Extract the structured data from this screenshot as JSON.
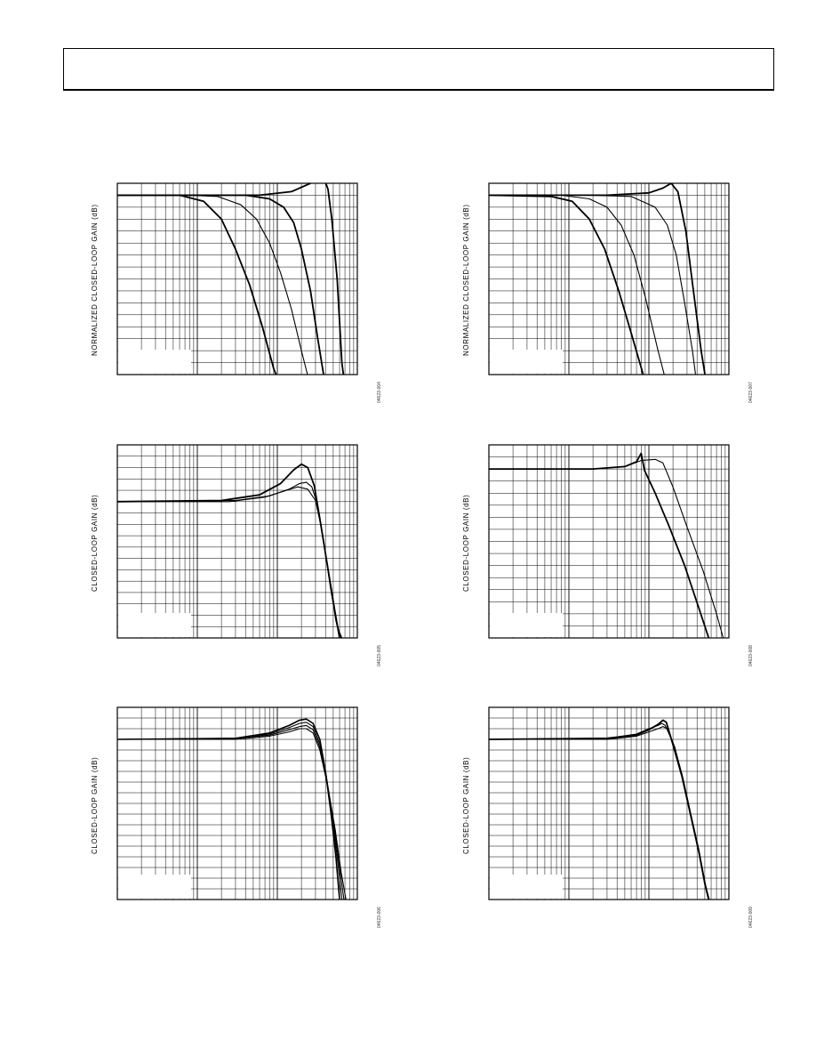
{
  "page": {
    "header": {
      "text": ""
    }
  },
  "chart_data": [
    {
      "id": "p1",
      "type": "line",
      "x_scale": "log",
      "grid": true,
      "title": "",
      "xlabel": "",
      "ylabel": "NORMALIZED CLOSED-LOOP GAIN (dB)",
      "figure_id": "04623-004",
      "ylim": [
        -15,
        1
      ],
      "xlim": [
        1,
        1000
      ],
      "yticks": 16,
      "series": [
        {
          "values": [
            [
              1,
              0
            ],
            [
              20,
              0
            ],
            [
              60,
              0
            ],
            [
              150,
              0.3
            ],
            [
              260,
              1.0
            ],
            [
              330,
              1.6
            ],
            [
              380,
              1.5
            ],
            [
              430,
              0.5
            ],
            [
              480,
              -2
            ],
            [
              560,
              -7
            ],
            [
              640,
              -14
            ],
            [
              700,
              -16
            ]
          ],
          "width": 1.8
        },
        {
          "values": [
            [
              1,
              0
            ],
            [
              15,
              0
            ],
            [
              40,
              0
            ],
            [
              80,
              -0.3
            ],
            [
              120,
              -1
            ],
            [
              160,
              -2.3
            ],
            [
              200,
              -4.5
            ],
            [
              260,
              -8
            ],
            [
              320,
              -12
            ],
            [
              400,
              -16
            ]
          ],
          "width": 1.8
        },
        {
          "values": [
            [
              1,
              0
            ],
            [
              8,
              0
            ],
            [
              18,
              -0.1
            ],
            [
              35,
              -0.8
            ],
            [
              55,
              -2
            ],
            [
              80,
              -4
            ],
            [
              110,
              -6.5
            ],
            [
              150,
              -9.5
            ],
            [
              200,
              -13
            ],
            [
              260,
              -16
            ]
          ],
          "width": 1.1
        },
        {
          "values": [
            [
              1,
              0
            ],
            [
              6,
              0
            ],
            [
              12,
              -0.5
            ],
            [
              20,
              -2
            ],
            [
              30,
              -4.5
            ],
            [
              45,
              -7.5
            ],
            [
              65,
              -11
            ],
            [
              90,
              -14.5
            ],
            [
              110,
              -16
            ]
          ],
          "width": 1.8
        }
      ]
    },
    {
      "id": "p2",
      "type": "line",
      "x_scale": "log",
      "grid": true,
      "title": "",
      "xlabel": "",
      "ylabel": "NORMALIZED CLOSED-LOOP GAIN (dB)",
      "figure_id": "04623-007",
      "ylim": [
        -15,
        1
      ],
      "xlim": [
        1,
        1000
      ],
      "yticks": 16,
      "series": [
        {
          "values": [
            [
              1,
              0
            ],
            [
              30,
              0
            ],
            [
              100,
              0.2
            ],
            [
              150,
              0.6
            ],
            [
              190,
              1.0
            ],
            [
              230,
              0.3
            ],
            [
              290,
              -3
            ],
            [
              360,
              -8
            ],
            [
              450,
              -13
            ],
            [
              530,
              -16
            ]
          ],
          "width": 1.8
        },
        {
          "values": [
            [
              1,
              0
            ],
            [
              20,
              0
            ],
            [
              60,
              -0.1
            ],
            [
              120,
              -1
            ],
            [
              170,
              -2.5
            ],
            [
              220,
              -5
            ],
            [
              280,
              -9
            ],
            [
              350,
              -13
            ],
            [
              400,
              -16
            ]
          ],
          "width": 1.1
        },
        {
          "values": [
            [
              1,
              0
            ],
            [
              8,
              0
            ],
            [
              18,
              -0.3
            ],
            [
              30,
              -1
            ],
            [
              45,
              -2.5
            ],
            [
              65,
              -5
            ],
            [
              90,
              -8.5
            ],
            [
              130,
              -13
            ],
            [
              170,
              -16
            ]
          ],
          "width": 1.1
        },
        {
          "values": [
            [
              1,
              0
            ],
            [
              6,
              -0.1
            ],
            [
              11,
              -0.5
            ],
            [
              18,
              -2
            ],
            [
              28,
              -4.5
            ],
            [
              42,
              -8
            ],
            [
              60,
              -11.5
            ],
            [
              85,
              -15
            ],
            [
              100,
              -16
            ]
          ],
          "width": 1.8
        }
      ]
    },
    {
      "id": "p3",
      "type": "line",
      "x_scale": "log",
      "grid": true,
      "title": "",
      "xlabel": "",
      "ylabel": "CLOSED-LOOP GAIN (dB)",
      "figure_id": "04623-005",
      "ylim": [
        -12,
        5
      ],
      "xlim": [
        1,
        1000
      ],
      "yticks": 17,
      "series": [
        {
          "values": [
            [
              1,
              0
            ],
            [
              20,
              0.1
            ],
            [
              60,
              0.6
            ],
            [
              110,
              1.6
            ],
            [
              160,
              2.8
            ],
            [
              200,
              3.3
            ],
            [
              240,
              3.0
            ],
            [
              290,
              1.4
            ],
            [
              340,
              -1.5
            ],
            [
              420,
              -5.5
            ],
            [
              520,
              -9.5
            ],
            [
              600,
              -12
            ]
          ],
          "width": 1.8
        },
        {
          "values": [
            [
              1,
              0
            ],
            [
              30,
              0.1
            ],
            [
              80,
              0.5
            ],
            [
              140,
              1.1
            ],
            [
              190,
              1.6
            ],
            [
              230,
              1.7
            ],
            [
              270,
              1.3
            ],
            [
              320,
              -0.3
            ],
            [
              380,
              -3.5
            ],
            [
              460,
              -7.5
            ],
            [
              560,
              -11
            ],
            [
              640,
              -12
            ]
          ],
          "width": 1.1
        },
        {
          "values": [
            [
              1,
              0
            ],
            [
              25,
              0
            ],
            [
              70,
              0.4
            ],
            [
              130,
              1.0
            ],
            [
              180,
              1.3
            ],
            [
              240,
              1.1
            ],
            [
              300,
              0.1
            ],
            [
              360,
              -2.5
            ],
            [
              440,
              -6.5
            ],
            [
              540,
              -10.5
            ],
            [
              630,
              -12
            ]
          ],
          "width": 1.1
        }
      ]
    },
    {
      "id": "p4",
      "type": "line",
      "x_scale": "log",
      "grid": true,
      "title": "",
      "xlabel": "",
      "ylabel": "CLOSED-LOOP GAIN (dB)",
      "figure_id": "04623-008",
      "ylim": [
        -15,
        1
      ],
      "xlim": [
        1,
        1000
      ],
      "yticks": 16,
      "series": [
        {
          "values": [
            [
              1,
              -1
            ],
            [
              20,
              -1
            ],
            [
              50,
              -0.8
            ],
            [
              70,
              -0.4
            ],
            [
              80,
              0.3
            ],
            [
              88,
              -1.1
            ],
            [
              120,
              -3
            ],
            [
              180,
              -5.8
            ],
            [
              280,
              -9
            ],
            [
              420,
              -12.5
            ],
            [
              560,
              -15
            ]
          ],
          "width": 1.8
        },
        {
          "values": [
            [
              1,
              -1
            ],
            [
              20,
              -1
            ],
            [
              50,
              -0.8
            ],
            [
              80,
              -0.3
            ],
            [
              120,
              -0.2
            ],
            [
              150,
              -0.5
            ],
            [
              200,
              -2.5
            ],
            [
              300,
              -5.8
            ],
            [
              480,
              -9.5
            ],
            [
              700,
              -13
            ],
            [
              850,
              -15
            ]
          ],
          "width": 1.1
        }
      ]
    },
    {
      "id": "p5",
      "type": "line",
      "x_scale": "log",
      "grid": true,
      "title": "",
      "xlabel": "",
      "ylabel": "CLOSED-LOOP GAIN (dB)",
      "figure_id": "04623-006",
      "ylim": [
        -15,
        3
      ],
      "xlim": [
        1,
        1000
      ],
      "yticks": 18,
      "series": [
        {
          "values": [
            [
              1,
              0
            ],
            [
              30,
              0.1
            ],
            [
              80,
              0.6
            ],
            [
              140,
              1.3
            ],
            [
              190,
              1.8
            ],
            [
              230,
              1.9
            ],
            [
              280,
              1.5
            ],
            [
              340,
              0
            ],
            [
              400,
              -3
            ],
            [
              470,
              -7
            ],
            [
              540,
              -11
            ],
            [
              600,
              -15
            ]
          ],
          "width": 1.6
        },
        {
          "values": [
            [
              1,
              0
            ],
            [
              30,
              0.1
            ],
            [
              80,
              0.5
            ],
            [
              140,
              1.1
            ],
            [
              190,
              1.5
            ],
            [
              230,
              1.6
            ],
            [
              280,
              1.2
            ],
            [
              340,
              -0.4
            ],
            [
              410,
              -3.5
            ],
            [
              490,
              -7.5
            ],
            [
              570,
              -11.5
            ],
            [
              640,
              -15
            ]
          ],
          "width": 1.1
        },
        {
          "values": [
            [
              1,
              0
            ],
            [
              30,
              0.1
            ],
            [
              80,
              0.4
            ],
            [
              140,
              0.9
            ],
            [
              190,
              1.2
            ],
            [
              230,
              1.3
            ],
            [
              280,
              0.9
            ],
            [
              340,
              -0.7
            ],
            [
              420,
              -4
            ],
            [
              510,
              -8
            ],
            [
              600,
              -12
            ],
            [
              680,
              -15
            ]
          ],
          "width": 1.1
        },
        {
          "values": [
            [
              1,
              0
            ],
            [
              30,
              0
            ],
            [
              80,
              0.3
            ],
            [
              140,
              0.7
            ],
            [
              190,
              1.0
            ],
            [
              230,
              1.0
            ],
            [
              280,
              0.6
            ],
            [
              340,
              -1
            ],
            [
              430,
              -4.5
            ],
            [
              530,
              -8.5
            ],
            [
              630,
              -12.5
            ],
            [
              720,
              -15
            ]
          ],
          "width": 1.1
        }
      ]
    },
    {
      "id": "p6",
      "type": "line",
      "x_scale": "log",
      "grid": true,
      "title": "",
      "xlabel": "",
      "ylabel": "CLOSED-LOOP GAIN (dB)",
      "figure_id": "04623-009",
      "ylim": [
        -15,
        3
      ],
      "xlim": [
        1,
        1000
      ],
      "yticks": 18,
      "series": [
        {
          "values": [
            [
              1,
              0
            ],
            [
              30,
              0.1
            ],
            [
              70,
              0.4
            ],
            [
              100,
              0.9
            ],
            [
              130,
              1.4
            ],
            [
              150,
              1.8
            ],
            [
              165,
              1.6
            ],
            [
              200,
              -0.5
            ],
            [
              260,
              -3.5
            ],
            [
              330,
              -7
            ],
            [
              420,
              -10.5
            ],
            [
              500,
              -13.5
            ],
            [
              560,
              -15
            ]
          ],
          "width": 1.8
        },
        {
          "values": [
            [
              1,
              0
            ],
            [
              30,
              0.1
            ],
            [
              70,
              0.5
            ],
            [
              100,
              1.0
            ],
            [
              130,
              1.3
            ],
            [
              145,
              1.5
            ],
            [
              160,
              1.3
            ],
            [
              200,
              -0.3
            ],
            [
              260,
              -3.3
            ],
            [
              330,
              -6.8
            ],
            [
              420,
              -10.3
            ],
            [
              500,
              -13.3
            ],
            [
              560,
              -15
            ]
          ],
          "width": 1.1
        },
        {
          "values": [
            [
              1,
              0
            ],
            [
              30,
              0
            ],
            [
              70,
              0.3
            ],
            [
              100,
              0.7
            ],
            [
              130,
              1.0
            ],
            [
              150,
              1.2
            ],
            [
              170,
              1.0
            ],
            [
              210,
              -0.7
            ],
            [
              270,
              -3.8
            ],
            [
              340,
              -7.3
            ],
            [
              430,
              -10.7
            ],
            [
              510,
              -13.7
            ],
            [
              570,
              -15
            ]
          ],
          "width": 1.1
        }
      ]
    }
  ]
}
